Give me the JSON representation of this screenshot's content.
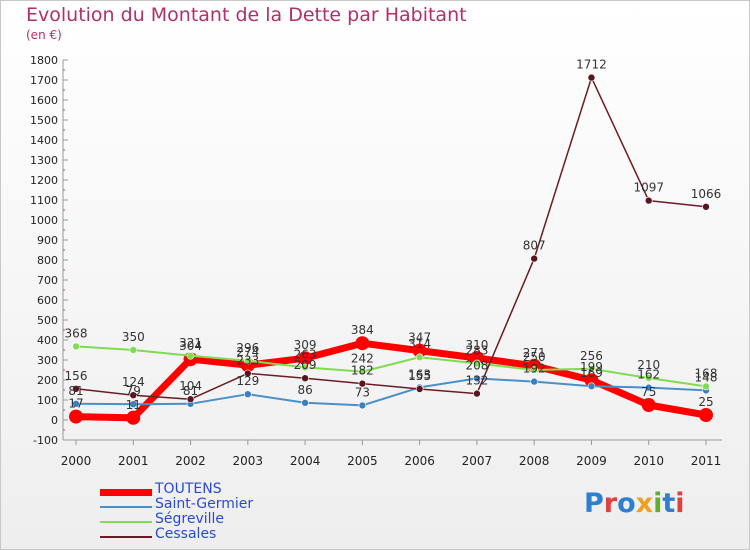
{
  "title": "Evolution du Montant de la Dette par Habitant",
  "unit": "(en €)",
  "logo_text": "Proxiti",
  "chart_data": {
    "type": "line",
    "title": "Evolution du Montant de la Dette par Habitant",
    "subtitle": "(en €)",
    "xlabel": "",
    "ylabel": "",
    "x": [
      "2000",
      "2001",
      "2002",
      "2003",
      "2004",
      "2005",
      "2006",
      "2007",
      "2008",
      "2009",
      "2010",
      "2011"
    ],
    "ylim": [
      -100,
      1800
    ],
    "yticks": [
      -100,
      0,
      100,
      200,
      300,
      400,
      500,
      600,
      700,
      800,
      900,
      1000,
      1100,
      1200,
      1300,
      1400,
      1500,
      1600,
      1700,
      1800
    ],
    "grid": false,
    "legend_position": "bottom-left",
    "series": [
      {
        "name": "TOUTENS",
        "color": "#ff0000",
        "values": [
          17,
          11,
          304,
          274,
          309,
          384,
          347,
          310,
          271,
          199,
          75,
          25
        ]
      },
      {
        "name": "Saint-Germier",
        "color": "#4a90c8",
        "values": [
          81,
          79,
          81,
          129,
          86,
          73,
          163,
          208,
          192,
          169,
          162,
          148
        ]
      },
      {
        "name": "Ségreville",
        "color": "#7fdc50",
        "values": [
          368,
          350,
          321,
          296,
          263,
          242,
          314,
          283,
          250,
          256,
          210,
          168
        ]
      },
      {
        "name": "Cessales",
        "color": "#6b1b25",
        "values": [
          156,
          124,
          104,
          233,
          209,
          182,
          155,
          132,
          807,
          1712,
          1097,
          1066
        ]
      }
    ]
  }
}
